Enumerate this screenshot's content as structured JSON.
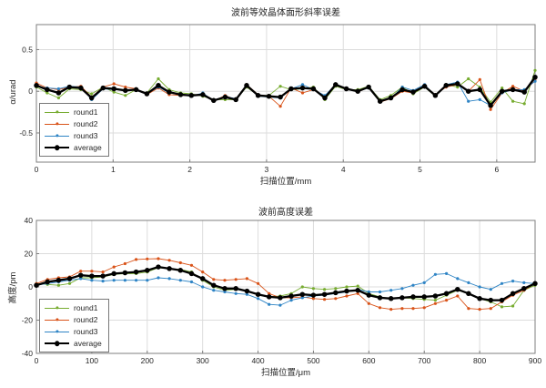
{
  "figure": {
    "background": "#ffffff"
  },
  "colors": {
    "grid": "#dcdcdc",
    "axis": "#7f7f7f",
    "text": "#262626"
  },
  "chart_data": [
    {
      "type": "line",
      "title": "波前等效晶体面形斜率误差",
      "xlabel": "扫描位置/mm",
      "ylabel": "α/urad",
      "xlim": [
        0,
        6.5
      ],
      "ylim": [
        -0.85,
        0.8
      ],
      "xticks": [
        0,
        1,
        2,
        3,
        4,
        5,
        6
      ],
      "xtick_labels": [
        "0",
        "1",
        "2",
        "3",
        "4",
        "5",
        "6"
      ],
      "yticks": [
        0.5,
        0,
        -0.5
      ],
      "ytick_labels": [
        "0.5",
        "0",
        "-0.5"
      ],
      "grid": true,
      "legend_position": "lower-left",
      "x": [
        0.0,
        0.14,
        0.29,
        0.43,
        0.58,
        0.72,
        0.87,
        1.01,
        1.16,
        1.3,
        1.44,
        1.59,
        1.73,
        1.88,
        2.02,
        2.17,
        2.31,
        2.46,
        2.6,
        2.74,
        2.89,
        3.03,
        3.18,
        3.32,
        3.47,
        3.61,
        3.76,
        3.9,
        4.04,
        4.19,
        4.33,
        4.48,
        4.62,
        4.77,
        4.91,
        5.06,
        5.2,
        5.34,
        5.49,
        5.63,
        5.78,
        5.92,
        6.07,
        6.21,
        6.36,
        6.5
      ],
      "series": [
        {
          "name": "round1",
          "color": "#77AC30",
          "width": 0.9,
          "marker": 3.2,
          "values": [
            0.05,
            -0.02,
            -0.08,
            0.03,
            0.02,
            -0.03,
            0.05,
            -0.01,
            -0.05,
            0.02,
            -0.02,
            0.15,
            0.02,
            -0.02,
            -0.03,
            -0.06,
            -0.1,
            -0.1,
            -0.1,
            0.05,
            -0.05,
            -0.05,
            0.06,
            0.02,
            0.03,
            0.05,
            -0.1,
            0.06,
            0.02,
            0.02,
            0.06,
            -0.1,
            -0.05,
            0.05,
            -0.03,
            0.05,
            -0.06,
            0.08,
            0.05,
            0.15,
            0.05,
            -0.13,
            0.04,
            -0.12,
            -0.15,
            0.25
          ]
        },
        {
          "name": "round2",
          "color": "#D95319",
          "width": 0.9,
          "marker": 3.2,
          "values": [
            0.1,
            0.04,
            0.02,
            0.05,
            0.06,
            -0.07,
            0.05,
            0.09,
            0.05,
            0.03,
            -0.04,
            0.04,
            -0.04,
            -0.05,
            -0.05,
            -0.03,
            -0.12,
            -0.05,
            -0.1,
            0.08,
            -0.04,
            -0.06,
            -0.18,
            0.04,
            -0.02,
            0.02,
            -0.06,
            0.07,
            0.04,
            -0.01,
            0.05,
            -0.13,
            -0.09,
            0.0,
            -0.02,
            0.06,
            -0.04,
            0.05,
            0.08,
            0.0,
            0.14,
            -0.22,
            -0.02,
            0.06,
            0.0,
            0.13
          ]
        },
        {
          "name": "round3",
          "color": "#2E84C5",
          "width": 0.9,
          "marker": 3.2,
          "values": [
            0.06,
            0.04,
            0.03,
            0.06,
            0.05,
            -0.1,
            0.03,
            0.02,
            0.02,
            0.01,
            -0.03,
            0.05,
            -0.02,
            -0.04,
            -0.06,
            -0.02,
            -0.12,
            -0.06,
            -0.09,
            0.07,
            -0.06,
            -0.07,
            -0.08,
            0.03,
            0.08,
            0.02,
            -0.05,
            0.08,
            0.03,
            0.0,
            0.04,
            -0.12,
            -0.09,
            0.05,
            0.01,
            0.08,
            -0.06,
            0.08,
            0.11,
            -0.12,
            -0.1,
            -0.17,
            -0.02,
            0.02,
            0.02,
            0.12
          ]
        },
        {
          "name": "average",
          "color": "#000000",
          "width": 2.3,
          "marker": 5.5,
          "values": [
            0.07,
            0.02,
            -0.02,
            0.05,
            0.04,
            -0.08,
            0.04,
            0.03,
            0.01,
            0.02,
            -0.03,
            0.07,
            -0.01,
            -0.04,
            -0.05,
            -0.04,
            -0.11,
            -0.07,
            -0.1,
            0.07,
            -0.05,
            -0.06,
            -0.07,
            0.03,
            0.04,
            0.03,
            -0.08,
            0.08,
            0.03,
            0.0,
            0.05,
            -0.12,
            -0.08,
            0.02,
            -0.01,
            0.06,
            -0.05,
            0.07,
            0.09,
            0.0,
            0.02,
            -0.17,
            0.0,
            0.02,
            -0.01,
            0.17
          ]
        }
      ]
    },
    {
      "type": "line",
      "title": "波前高度误差",
      "xlabel": "扫描位置/μm",
      "ylabel": "高度/pm",
      "xlim": [
        0,
        900
      ],
      "ylim": [
        -40,
        40
      ],
      "xticks": [
        0,
        100,
        200,
        300,
        400,
        500,
        600,
        700,
        800,
        900
      ],
      "xtick_labels": [
        "0",
        "100",
        "200",
        "300",
        "400",
        "500",
        "600",
        "700",
        "800",
        "900"
      ],
      "yticks": [
        40,
        20,
        0,
        -20,
        -40
      ],
      "ytick_labels": [
        "40",
        "20",
        "0",
        "-20",
        "-40"
      ],
      "grid": true,
      "legend_position": "lower-left",
      "x": [
        0,
        20,
        40,
        60,
        80,
        100,
        120,
        140,
        160,
        180,
        200,
        220,
        240,
        260,
        280,
        300,
        320,
        340,
        360,
        380,
        400,
        420,
        440,
        460,
        480,
        500,
        520,
        540,
        560,
        580,
        600,
        620,
        640,
        660,
        680,
        700,
        720,
        740,
        760,
        780,
        800,
        820,
        840,
        860,
        880,
        900
      ],
      "series": [
        {
          "name": "round1",
          "color": "#77AC30",
          "width": 0.9,
          "marker": 3.2,
          "values": [
            2,
            1.5,
            1,
            2,
            5.5,
            5.5,
            6,
            7.5,
            8,
            8,
            9,
            11.5,
            11,
            10.5,
            9,
            4,
            0,
            -2,
            -1.5,
            -2.5,
            -5,
            -6,
            -5.5,
            -4,
            0,
            -1,
            -1.5,
            -1,
            0,
            0.5,
            -4,
            -6,
            -7,
            -6.5,
            -7,
            -7.5,
            -8,
            -5,
            -2,
            -4,
            -7,
            -9,
            -12,
            -11.5,
            -2,
            1
          ]
        },
        {
          "name": "round2",
          "color": "#D95319",
          "width": 0.9,
          "marker": 3.2,
          "values": [
            2,
            4.5,
            5.5,
            6,
            9.5,
            9.5,
            9,
            12,
            14,
            16.5,
            16.8,
            17,
            16,
            14.5,
            13,
            9,
            4.5,
            4,
            4.5,
            5,
            2,
            -4,
            -6.5,
            -6.5,
            -6,
            -7,
            -7.5,
            -7,
            -5.5,
            -4,
            -10,
            -12.5,
            -13.5,
            -13,
            -13,
            -12.5,
            -10,
            -8,
            -5.5,
            -13,
            -13.5,
            -13,
            -9,
            -5,
            -2,
            2
          ]
        },
        {
          "name": "round3",
          "color": "#2E84C5",
          "width": 0.9,
          "marker": 3.2,
          "values": [
            1,
            2,
            3,
            4,
            5,
            4,
            3.5,
            4,
            4,
            4,
            4,
            5.5,
            5,
            4,
            3,
            0,
            -2,
            -3,
            -4,
            -4.5,
            -7,
            -10.5,
            -11,
            -8,
            -6.5,
            -5.5,
            -5,
            -4,
            -3,
            -1.5,
            -3,
            -3,
            -2,
            -1,
            1,
            2.5,
            7.5,
            8,
            5,
            2.5,
            0,
            -1.5,
            2,
            3.5,
            2.5,
            2
          ]
        },
        {
          "name": "average",
          "color": "#000000",
          "width": 2.3,
          "marker": 5.5,
          "values": [
            1,
            3,
            4,
            5,
            7,
            6.5,
            6.5,
            8,
            8.5,
            9,
            10,
            12,
            11,
            10,
            8,
            5,
            1,
            -1,
            -1,
            -2.5,
            -4.5,
            -6,
            -6.5,
            -5.5,
            -4.5,
            -5,
            -4.5,
            -3.5,
            -2.5,
            -2,
            -5,
            -6.5,
            -7,
            -6.5,
            -6,
            -6,
            -5.5,
            -4,
            -1.5,
            -4,
            -7,
            -8,
            -8,
            -4,
            -1,
            2
          ]
        }
      ]
    }
  ]
}
